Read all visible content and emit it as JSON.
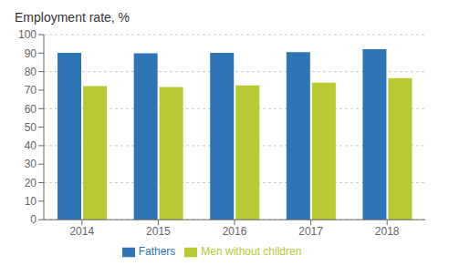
{
  "chart_data": {
    "type": "bar",
    "title": "Employment rate, %",
    "categories": [
      "2014",
      "2015",
      "2016",
      "2017",
      "2018"
    ],
    "series": [
      {
        "name": "Fathers",
        "color": "#2E75B6",
        "values": [
          90.1,
          89.9,
          90.1,
          90.5,
          92.1
        ]
      },
      {
        "name": "Men without children",
        "color": "#B8C934",
        "values": [
          72.2,
          71.7,
          72.5,
          74.0,
          76.5
        ]
      }
    ],
    "ylim": [
      0,
      100
    ],
    "yticks": [
      0,
      10,
      20,
      30,
      40,
      50,
      60,
      70,
      80,
      90,
      100
    ],
    "grid": true,
    "legend": "bottom"
  }
}
